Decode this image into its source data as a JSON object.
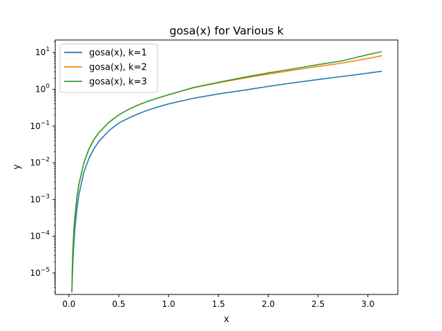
{
  "chart_data": {
    "type": "line",
    "title": "gosa(x) for Various k",
    "xlabel": "x",
    "ylabel": "y",
    "xlim": [
      -0.137,
      3.3
    ],
    "ylim": [
      2.6e-06,
      22
    ],
    "yscale": "log",
    "grid": false,
    "legend_position": "top-left",
    "xticks": [
      {
        "value": 0.0,
        "label": "0.0"
      },
      {
        "value": 0.5,
        "label": "0.5"
      },
      {
        "value": 1.0,
        "label": "1.0"
      },
      {
        "value": 1.5,
        "label": "1.5"
      },
      {
        "value": 2.0,
        "label": "2.0"
      },
      {
        "value": 2.5,
        "label": "2.5"
      },
      {
        "value": 3.0,
        "label": "3.0"
      }
    ],
    "yticks": [
      {
        "value": 1e-05,
        "base": "10",
        "exp": "−5"
      },
      {
        "value": 0.0001,
        "base": "10",
        "exp": "−4"
      },
      {
        "value": 0.001,
        "base": "10",
        "exp": "−3"
      },
      {
        "value": 0.01,
        "base": "10",
        "exp": "−2"
      },
      {
        "value": 0.1,
        "base": "10",
        "exp": "−1"
      },
      {
        "value": 1,
        "base": "10",
        "exp": "0"
      },
      {
        "value": 10,
        "base": "10",
        "exp": "1"
      }
    ],
    "series": [
      {
        "name": "gosa(x), k=1",
        "color": "#1f77b4",
        "x": [
          0.03,
          0.035,
          0.04,
          0.05,
          0.06,
          0.08,
          0.1,
          0.15,
          0.2,
          0.25,
          0.3,
          0.4,
          0.5,
          0.6,
          0.7,
          0.8,
          0.9,
          1.0,
          1.25,
          1.5,
          1.75,
          2.0,
          2.25,
          2.5,
          2.75,
          3.0,
          3.14
        ],
        "y": [
          3e-06,
          8e-06,
          2e-05,
          6.5e-05,
          0.00016,
          0.00055,
          0.00135,
          0.0055,
          0.013,
          0.024,
          0.038,
          0.074,
          0.12,
          0.165,
          0.218,
          0.275,
          0.335,
          0.4,
          0.57,
          0.75,
          0.94,
          1.2,
          1.5,
          1.85,
          2.25,
          2.75,
          3.1
        ]
      },
      {
        "name": "gosa(x), k=2",
        "color": "#ff7f0e",
        "x": [
          0.03,
          0.035,
          0.04,
          0.05,
          0.06,
          0.08,
          0.1,
          0.15,
          0.2,
          0.25,
          0.3,
          0.4,
          0.5,
          0.6,
          0.7,
          0.8,
          0.9,
          1.0,
          1.25,
          1.5,
          1.75,
          2.0,
          2.25,
          2.5,
          2.75,
          3.0,
          3.14
        ],
        "y": [
          3e-06,
          1.6e-05,
          4e-05,
          0.00014,
          0.00033,
          0.0011,
          0.0025,
          0.0098,
          0.023,
          0.042,
          0.065,
          0.125,
          0.2,
          0.285,
          0.38,
          0.48,
          0.59,
          0.71,
          1.1,
          1.5,
          2.0,
          2.6,
          3.3,
          4.2,
          5.2,
          6.9,
          8.2
        ]
      },
      {
        "name": "gosa(x), k=3",
        "color": "#2ca02c",
        "x": [
          0.03,
          0.035,
          0.04,
          0.05,
          0.06,
          0.08,
          0.1,
          0.15,
          0.2,
          0.25,
          0.3,
          0.4,
          0.5,
          0.6,
          0.7,
          0.8,
          0.9,
          1.0,
          1.25,
          1.5,
          1.75,
          2.0,
          2.25,
          2.5,
          2.75,
          3.0,
          3.14
        ],
        "y": [
          3e-06,
          1.8e-05,
          4.5e-05,
          0.00015,
          0.00035,
          0.00115,
          0.0026,
          0.01,
          0.0235,
          0.043,
          0.066,
          0.126,
          0.2,
          0.285,
          0.38,
          0.48,
          0.59,
          0.71,
          1.12,
          1.55,
          2.1,
          2.8,
          3.6,
          4.7,
          6.0,
          8.8,
          10.6
        ]
      }
    ]
  }
}
